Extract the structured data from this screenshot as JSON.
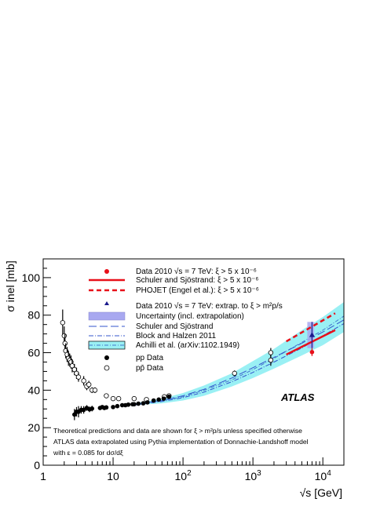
{
  "chart_data": {
    "type": "scatter",
    "title": "",
    "xlabel": "√s [GeV]",
    "ylabel": "σ inel [mb]",
    "x_scale": "log",
    "xlim": [
      1,
      20000
    ],
    "ylim": [
      0,
      110
    ],
    "x_ticks": [
      {
        "v": 1,
        "label": "1",
        "sup": ""
      },
      {
        "v": 10,
        "label": "10",
        "sup": ""
      },
      {
        "v": 100,
        "label": "10",
        "sup": "2"
      },
      {
        "v": 1000,
        "label": "10",
        "sup": "3"
      },
      {
        "v": 10000,
        "label": "10",
        "sup": "4"
      }
    ],
    "y_ticks": [
      0,
      20,
      40,
      60,
      80,
      100
    ],
    "grid": false,
    "legend_position": "top-center",
    "legend": [
      {
        "key": "atlas_xi",
        "text": "Data 2010 √s = 7 TeV: ξ > 5 x 10⁻⁶"
      },
      {
        "key": "schuler_xi",
        "text": "Schuler and Sjöstrand: ξ > 5 x 10⁻⁶"
      },
      {
        "key": "phojet_xi",
        "text": "PHOJET (Engel et al.): ξ > 5 x 10⁻⁶"
      },
      {
        "key": "atlas_extrap",
        "text": "Data 2010 √s = 7 TeV: extrap. to ξ > m²p/s"
      },
      {
        "key": "uncertainty",
        "text": "Uncertainty (incl. extrapolation)"
      },
      {
        "key": "schuler",
        "text": "Schuler and Sjöstrand"
      },
      {
        "key": "block",
        "text": "Block and Halzen 2011"
      },
      {
        "key": "achilli",
        "text": "Achilli et al. (arXiv:1102.1949)"
      },
      {
        "key": "pp",
        "text": "pp Data"
      },
      {
        "key": "ppbar",
        "text": "pp̄ Data"
      }
    ],
    "annotations": {
      "experiment": "ATLAS",
      "note_lines": [
        "Theoretical predictions and data are shown for ξ > m²p/s unless specified otherwise",
        "ATLAS data extrapolated using Pythia implementation of Donnachie-Landshoff model",
        "with ε = 0.085 for dσ/dξ"
      ]
    },
    "colors": {
      "atlas_xi": "#e8101a",
      "schuler_xi": "#e8101a",
      "phojet_xi": "#e8101a",
      "atlas_extrap": "#1a1a8c",
      "uncertainty": "#a8a8f0",
      "schuler": "#3355cc",
      "block": "#3355cc",
      "achilli_band": "#9af0f4",
      "achilli_line": "#4477cc"
    },
    "series": [
      {
        "key": "pp",
        "x": [
          2.8,
          3.0,
          3.2,
          3.5,
          3.8,
          4.2,
          4.6,
          5.0,
          6.5,
          7.0,
          7.5,
          8.0,
          10.0,
          11.5,
          13.5,
          15.0,
          16.5,
          19.0,
          20.0,
          23.0,
          27.0,
          31.0,
          38.0,
          45.0,
          53.0,
          63.0
        ],
        "y": [
          27.0,
          28.5,
          28.5,
          29.5,
          29.5,
          30.5,
          29.8,
          30.2,
          30.5,
          31.0,
          30.5,
          30.8,
          31.0,
          31.5,
          32.0,
          32.0,
          32.3,
          32.5,
          32.5,
          32.8,
          33.0,
          33.5,
          34.5,
          35.0,
          35.5,
          36.5
        ],
        "err": [
          3.0,
          2.5,
          3.0,
          2.0,
          2.0,
          1.5,
          1.5,
          1.5,
          1.0,
          1.0,
          1.0,
          1.0,
          0.8,
          0.8,
          0.8,
          0.8,
          0.8,
          0.8,
          0.8,
          0.6,
          0.6,
          0.6,
          0.6,
          0.6,
          0.6,
          0.6
        ]
      },
      {
        "key": "ppbar",
        "x": [
          1.9,
          2.0,
          2.05,
          2.1,
          2.2,
          2.3,
          2.4,
          2.5,
          2.6,
          2.8,
          3.0,
          3.2,
          3.8,
          4.2,
          4.5,
          5.0,
          5.5,
          8.0,
          10.0,
          12.0,
          20.0,
          30.0,
          54.0,
          63.0,
          546.0,
          1800.0
        ],
        "y": [
          76.0,
          69.0,
          65.0,
          61.0,
          59.0,
          57.0,
          56.0,
          55.0,
          53.0,
          51.0,
          49.0,
          47.0,
          45.0,
          42.0,
          43.0,
          40.0,
          40.0,
          37.0,
          35.5,
          35.5,
          35.5,
          35.0,
          36.5,
          37.0,
          49.0,
          60.0
        ],
        "err": [
          7.0,
          5.0,
          5.0,
          4.0,
          4.0,
          4.0,
          3.5,
          3.5,
          3.5,
          3.0,
          3.0,
          2.5,
          2.5,
          2.0,
          2.0,
          1.5,
          1.5,
          1.0,
          1.0,
          1.0,
          1.0,
          1.0,
          1.0,
          1.0,
          1.5,
          2.5
        ]
      },
      {
        "key": "ppbar_extra",
        "x": [
          1800.0
        ],
        "y": [
          56.0
        ],
        "err": [
          3.0
        ]
      },
      {
        "key": "atlas_xi_point",
        "x": [
          7000
        ],
        "y": [
          60.3
        ],
        "err": [
          2.1
        ]
      },
      {
        "key": "atlas_extrap_point",
        "x": [
          7000
        ],
        "y": [
          69.4
        ],
        "err": [
          7.0
        ]
      },
      {
        "key": "schuler_xi_line",
        "x": [
          3000,
          15000
        ],
        "y": [
          59.0,
          72.0
        ]
      },
      {
        "key": "phojet_xi_line",
        "x": [
          3000,
          15000
        ],
        "y": [
          66.0,
          81.0
        ]
      },
      {
        "key": "schuler_curve",
        "x": [
          20,
          50,
          100,
          200,
          500,
          1000,
          2000,
          5000,
          10000,
          20000
        ],
        "y": [
          32.5,
          34.5,
          37.0,
          40.5,
          46.5,
          52.0,
          57.5,
          65.0,
          71.0,
          77.5
        ]
      },
      {
        "key": "block_curve",
        "x": [
          20,
          50,
          100,
          200,
          500,
          1000,
          2000,
          5000,
          10000,
          20000
        ],
        "y": [
          32.0,
          34.0,
          36.0,
          39.0,
          44.5,
          49.5,
          55.0,
          62.5,
          69.0,
          75.5
        ]
      },
      {
        "key": "achilli_curve",
        "x": [
          20,
          50,
          100,
          200,
          500,
          1000,
          2000,
          5000,
          10000,
          20000
        ],
        "y": [
          32.5,
          34.5,
          36.5,
          40.0,
          45.5,
          51.0,
          57.0,
          65.5,
          72.0,
          79.5
        ]
      },
      {
        "key": "achilli_band",
        "x": [
          20,
          50,
          100,
          200,
          500,
          1000,
          2000,
          5000,
          10000,
          20000
        ],
        "lower": [
          32.0,
          33.0,
          34.5,
          37.0,
          42.0,
          46.5,
          51.5,
          58.5,
          64.0,
          71.0
        ],
        "upper": [
          33.0,
          35.5,
          38.5,
          42.5,
          49.0,
          55.5,
          62.0,
          72.0,
          79.0,
          87.0
        ]
      },
      {
        "key": "uncertainty_box",
        "x": [
          6000,
          7500
        ],
        "y": [
          62.4,
          76.4
        ]
      }
    ]
  }
}
